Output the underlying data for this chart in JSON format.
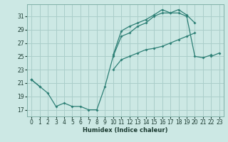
{
  "xlabel": "Humidex (Indice chaleur)",
  "bg_color": "#cce8e4",
  "grid_color": "#aaceca",
  "line_color": "#2d7f75",
  "xlim": [
    -0.5,
    23.5
  ],
  "ylim": [
    16.0,
    32.8
  ],
  "xticks": [
    0,
    1,
    2,
    3,
    4,
    5,
    6,
    7,
    8,
    9,
    10,
    11,
    12,
    13,
    14,
    15,
    16,
    17,
    18,
    19,
    20,
    21,
    22,
    23
  ],
  "yticks": [
    17,
    19,
    21,
    23,
    25,
    27,
    29,
    31
  ],
  "line1_x": [
    0,
    1,
    2,
    3,
    4,
    5,
    6,
    7,
    8,
    9,
    10,
    11,
    12,
    13,
    14,
    15,
    16,
    17,
    18,
    19,
    20,
    21,
    22,
    23
  ],
  "line1_y": [
    21.5,
    20.5,
    19.5,
    17.5,
    18.0,
    17.5,
    17.5,
    17.0,
    17.0,
    20.5,
    25.0,
    28.0,
    28.5,
    29.5,
    30.0,
    31.0,
    31.5,
    31.5,
    31.5,
    31.0,
    25.0,
    24.8,
    25.2,
    null
  ],
  "line2_x": [
    0,
    1,
    2,
    3,
    4,
    5,
    6,
    7,
    8,
    9,
    10,
    11,
    12,
    13,
    14,
    15,
    16,
    17,
    18,
    19,
    20,
    21,
    22,
    23
  ],
  "line2_y": [
    21.5,
    20.5,
    null,
    null,
    null,
    null,
    null,
    null,
    null,
    null,
    25.2,
    28.8,
    29.5,
    30.0,
    30.5,
    31.2,
    32.0,
    31.5,
    32.0,
    31.2,
    30.0,
    null,
    null,
    null
  ],
  "line3_x": [
    0,
    1,
    2,
    3,
    4,
    5,
    6,
    7,
    8,
    9,
    10,
    11,
    12,
    13,
    14,
    15,
    16,
    17,
    18,
    19,
    20,
    21,
    22,
    23
  ],
  "line3_y": [
    21.5,
    null,
    null,
    null,
    null,
    null,
    null,
    null,
    null,
    null,
    23.0,
    24.5,
    25.0,
    25.5,
    26.0,
    26.2,
    26.5,
    27.0,
    27.5,
    28.0,
    28.5,
    null,
    25.0,
    25.5
  ]
}
